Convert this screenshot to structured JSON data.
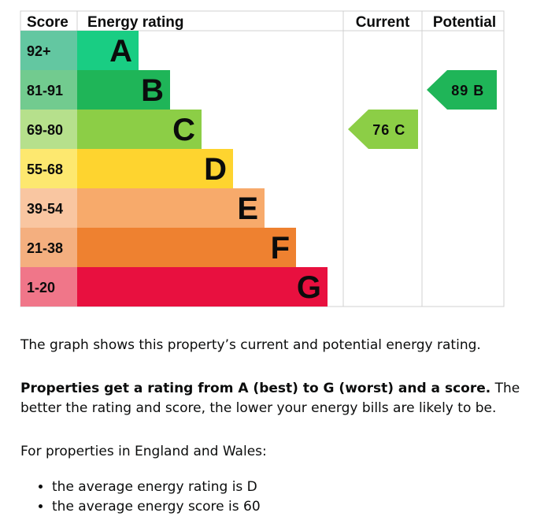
{
  "chart_data": {
    "type": "bar",
    "headers": {
      "score": "Score",
      "rating": "Energy rating",
      "current": "Current",
      "potential": "Potential"
    },
    "bands": [
      {
        "letter": "A",
        "range": "92+",
        "color": "#19cd83",
        "range_color": "#63c7a1"
      },
      {
        "letter": "B",
        "range": "81-91",
        "color": "#1fb558",
        "range_color": "#72cb8f"
      },
      {
        "letter": "C",
        "range": "69-80",
        "color": "#8cce46",
        "range_color": "#b6e08c"
      },
      {
        "letter": "D",
        "range": "55-68",
        "color": "#fed42f",
        "range_color": "#fde86f"
      },
      {
        "letter": "E",
        "range": "39-54",
        "color": "#f7aa6b",
        "range_color": "#f9c6a1"
      },
      {
        "letter": "F",
        "range": "21-38",
        "color": "#ee8130",
        "range_color": "#f4af7f"
      },
      {
        "letter": "G",
        "range": "1-20",
        "color": "#e8103f",
        "range_color": "#f07689"
      }
    ],
    "current": {
      "score": 76,
      "band": "C",
      "label": "76 C",
      "color": "#8cce46"
    },
    "potential": {
      "score": 89,
      "band": "B",
      "label": "89 B",
      "color": "#1fb558"
    }
  },
  "text": {
    "graph_description": "The graph shows this property’s current and potential energy rating.",
    "rating_bold": "Properties get a rating from A (best) to G (worst) and a score.",
    "rating_rest": " The better the rating and score, the lower your energy bills are likely to be.",
    "region_intro": "For properties in England and Wales:",
    "averages": [
      "the average energy rating is D",
      "the average energy score is 60"
    ]
  }
}
